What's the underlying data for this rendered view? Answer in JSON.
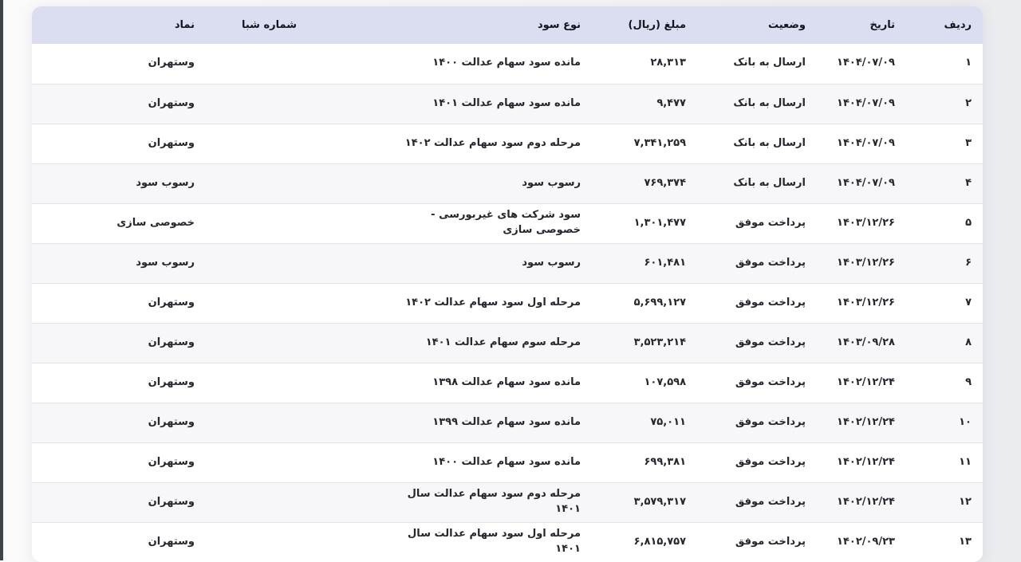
{
  "colors": {
    "header_bg": "#dbddf1",
    "header_text": "#14141d",
    "body_text": "#26262e",
    "even_row_bg": "#f7f7fa",
    "row_separator": "#e3e3e8",
    "card_bg": "#ffffff",
    "page_bg": "#f0f1f4",
    "left_edge": "#3f4449"
  },
  "table": {
    "columns": [
      {
        "key": "row",
        "label": "ردیف"
      },
      {
        "key": "date",
        "label": "تاریخ"
      },
      {
        "key": "status",
        "label": "وضعیت"
      },
      {
        "key": "amount",
        "label": "مبلغ (ریال)"
      },
      {
        "key": "type",
        "label": "نوع سود"
      },
      {
        "key": "sheba",
        "label": "شماره شبا"
      },
      {
        "key": "symbol",
        "label": "نماد"
      }
    ],
    "rows": [
      {
        "row": "۱",
        "date": "۱۴۰۴/۰۷/۰۹",
        "status": "ارسال به بانک",
        "amount": "۲۸,۳۱۳",
        "type": "مانده سود سهام عدالت ۱۴۰۰",
        "sheba": "",
        "symbol": "وستهران"
      },
      {
        "row": "۲",
        "date": "۱۴۰۴/۰۷/۰۹",
        "status": "ارسال به بانک",
        "amount": "۹,۴۷۷",
        "type": "مانده سود سهام عدالت ۱۴۰۱",
        "sheba": "",
        "symbol": "وستهران"
      },
      {
        "row": "۳",
        "date": "۱۴۰۴/۰۷/۰۹",
        "status": "ارسال به بانک",
        "amount": "۷,۳۴۱,۲۵۹",
        "type": "مرحله دوم سود سهام عدالت ۱۴۰۲",
        "sheba": "",
        "symbol": "وستهران"
      },
      {
        "row": "۴",
        "date": "۱۴۰۴/۰۷/۰۹",
        "status": "ارسال به بانک",
        "amount": "۷۶۹,۳۷۴",
        "type": "رسوب سود",
        "sheba": "",
        "symbol": "رسوب سود"
      },
      {
        "row": "۵",
        "date": "۱۴۰۳/۱۲/۲۶",
        "status": "پرداخت موفق",
        "amount": "۱,۳۰۱,۴۷۷",
        "type": "سود شرکت های غیربورسی - خصوصی سازی",
        "sheba": "",
        "symbol": "خصوصی سازی"
      },
      {
        "row": "۶",
        "date": "۱۴۰۳/۱۲/۲۶",
        "status": "پرداخت موفق",
        "amount": "۶۰۱,۴۸۱",
        "type": "رسوب سود",
        "sheba": "",
        "symbol": "رسوب سود"
      },
      {
        "row": "۷",
        "date": "۱۴۰۳/۱۲/۲۶",
        "status": "پرداخت موفق",
        "amount": "۵,۶۹۹,۱۲۷",
        "type": "مرحله اول سود سهام عدالت ۱۴۰۲",
        "sheba": "",
        "symbol": "وستهران"
      },
      {
        "row": "۸",
        "date": "۱۴۰۳/۰۹/۲۸",
        "status": "پرداخت موفق",
        "amount": "۳,۵۲۳,۲۱۴",
        "type": "مرحله سوم سهام عدالت ۱۴۰۱",
        "sheba": "",
        "symbol": "وستهران"
      },
      {
        "row": "۹",
        "date": "۱۴۰۲/۱۲/۲۴",
        "status": "پرداخت موفق",
        "amount": "۱۰۷,۵۹۸",
        "type": "مانده سود سهام عدالت ۱۳۹۸",
        "sheba": "",
        "symbol": "وستهران"
      },
      {
        "row": "۱۰",
        "date": "۱۴۰۲/۱۲/۲۴",
        "status": "پرداخت موفق",
        "amount": "۷۵,۰۱۱",
        "type": "مانده سود سهام عدالت ۱۳۹۹",
        "sheba": "",
        "symbol": "وستهران"
      },
      {
        "row": "۱۱",
        "date": "۱۴۰۲/۱۲/۲۴",
        "status": "پرداخت موفق",
        "amount": "۶۹۹,۳۸۱",
        "type": "مانده سود سهام عدالت ۱۴۰۰",
        "sheba": "",
        "symbol": "وستهران"
      },
      {
        "row": "۱۲",
        "date": "۱۴۰۲/۱۲/۲۴",
        "status": "پرداخت موفق",
        "amount": "۳,۵۷۹,۳۱۷",
        "type": "مرحله دوم سود سهام عدالت سال ۱۴۰۱",
        "sheba": "",
        "symbol": "وستهران"
      },
      {
        "row": "۱۳",
        "date": "۱۴۰۲/۰۹/۲۳",
        "status": "پرداخت موفق",
        "amount": "۶,۸۱۵,۷۵۷",
        "type": "مرحله اول سود سهام عدالت سال ۱۴۰۱",
        "sheba": "",
        "symbol": "وستهران"
      }
    ]
  }
}
